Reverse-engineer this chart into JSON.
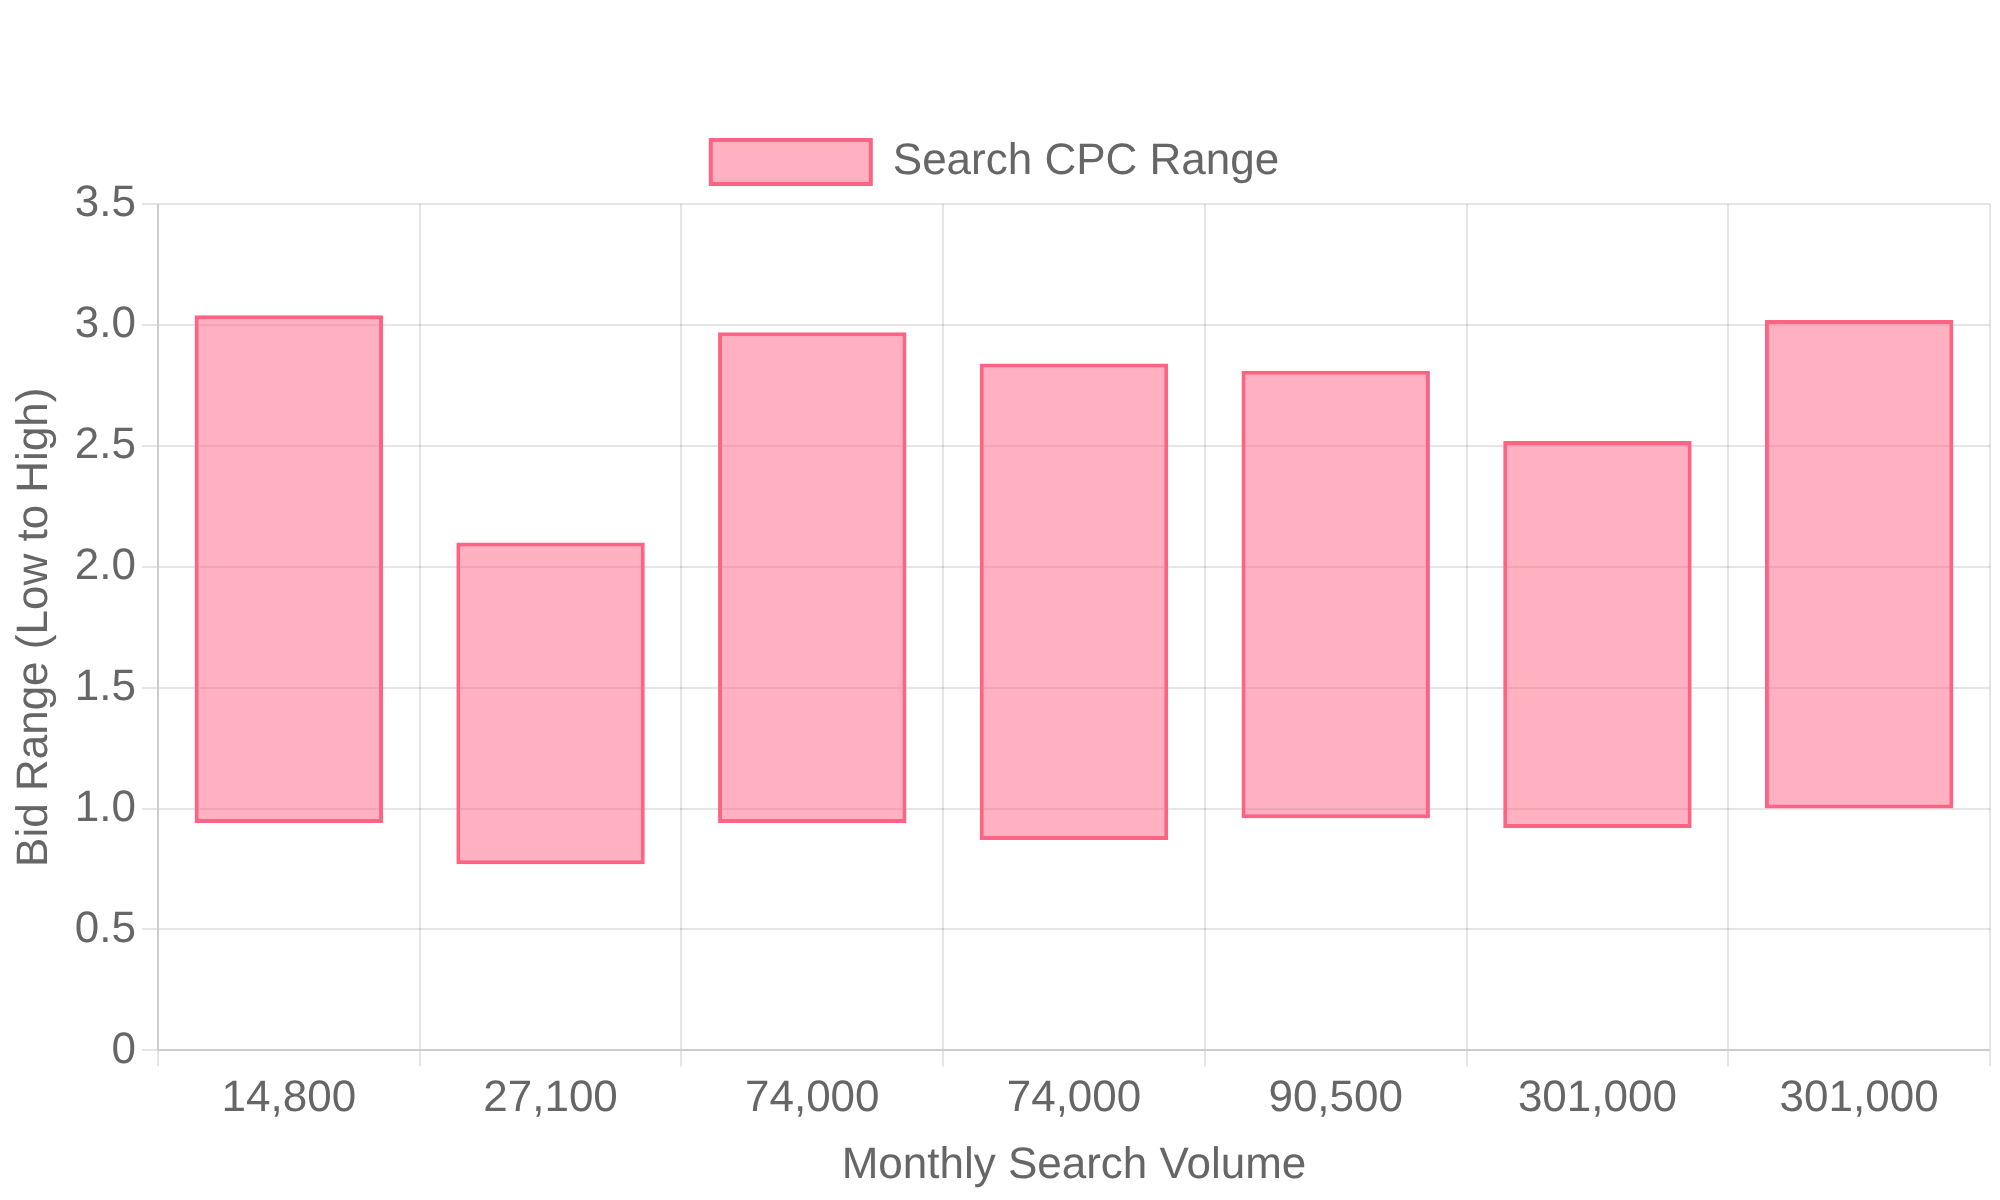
{
  "chart_data": {
    "type": "bar",
    "xlabel": "Monthly Search Volume",
    "ylabel": "Bid Range (Low to High)",
    "categories": [
      "14,800",
      "27,100",
      "74,000",
      "74,000",
      "90,500",
      "301,000",
      "301,000"
    ],
    "series": [
      {
        "name": "Search CPC Range",
        "color": "#ff6384",
        "base": [
          0.94,
          0.77,
          0.94,
          0.87,
          0.96,
          0.92,
          1.0
        ],
        "values": [
          2.1,
          1.33,
          2.03,
          1.97,
          1.85,
          1.6,
          2.02
        ]
      }
    ],
    "ylim": [
      0,
      3.5
    ],
    "yticks": [
      0,
      0.5,
      {
        "value": 1,
        "label": "1.0"
      },
      1.5,
      {
        "value": 2,
        "label": "2.0"
      },
      2.5,
      {
        "value": 3,
        "label": "3.0"
      },
      3.5
    ],
    "grid": true,
    "legend": "top"
  }
}
